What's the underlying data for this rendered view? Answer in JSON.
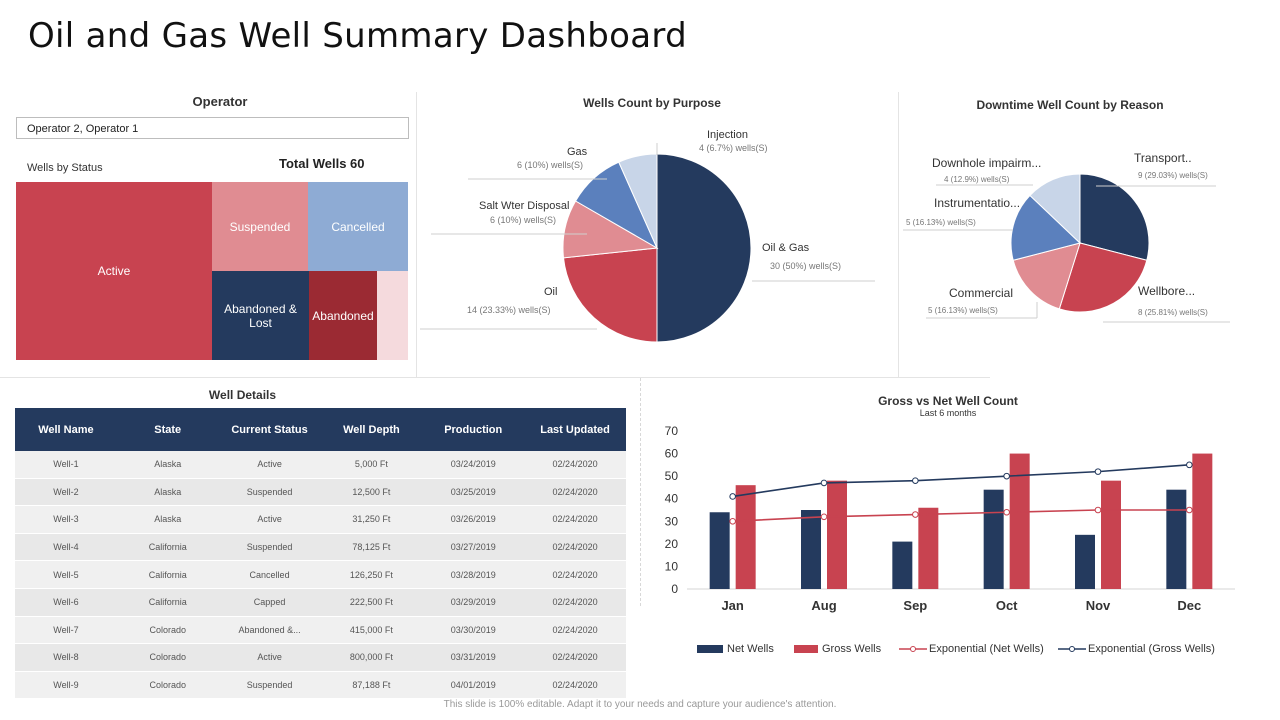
{
  "title": "Oil and Gas Well Summary Dashboard",
  "operator": {
    "title": "Operator",
    "filter_value": "Operator 2, Operator 1"
  },
  "status": {
    "label": "Wells by Status",
    "total": "Total Wells 60",
    "tiles": [
      "Active",
      "Suspended",
      "Cancelled",
      "Abandoned & Lost",
      "Abandoned"
    ]
  },
  "colors": {
    "navy": "#243a5e",
    "red": "#c84350",
    "pink": "#e08c92",
    "blue": "#5b80bd",
    "light_blue": "#c8d5e8",
    "sky": "#8eabd4",
    "dark_red": "#9b2a33",
    "pale_pink": "#f5dadd"
  },
  "chart_data": [
    {
      "type": "pie",
      "title": "Wells Count by Purpose",
      "slices": [
        {
          "label": "Oil & Gas",
          "detail": "30 (50%) wells(S)",
          "value": 30
        },
        {
          "label": "Oil",
          "detail": "14 (23.33%) wells(S)",
          "value": 14
        },
        {
          "label": "Salt Wter Disposal",
          "detail": "6 (10%) wells(S)",
          "value": 6
        },
        {
          "label": "Gas",
          "detail": "6 (10%) wells(S)",
          "value": 6
        },
        {
          "label": "Injection",
          "detail": "4 (6.7%) wells(S)",
          "value": 4
        }
      ]
    },
    {
      "type": "pie",
      "title": "Downtime Well Count by Reason",
      "slices": [
        {
          "label": "Transport..",
          "detail": "9 (29.03%) wells(S)",
          "value": 9
        },
        {
          "label": "Wellbore...",
          "detail": "8 (25.81%) wells(S)",
          "value": 8
        },
        {
          "label": "Commercial",
          "detail": "5 (16.13%) wells(S)",
          "value": 5
        },
        {
          "label": "Instrumentatio...",
          "detail": "5 (16.13%) wells(S)",
          "value": 5
        },
        {
          "label": "Downhole impairm...",
          "detail": "4 (12.9%) wells(S)",
          "value": 4
        }
      ]
    },
    {
      "type": "bar",
      "title": "Gross vs Net Well Count",
      "subtitle": "Last 6 months",
      "categories": [
        "Jan",
        "Aug",
        "Sep",
        "Oct",
        "Nov",
        "Dec"
      ],
      "ylim": [
        0,
        70
      ],
      "yticks": [
        "0",
        "10",
        "20",
        "30",
        "40",
        "50",
        "60",
        "70"
      ],
      "series": [
        {
          "name": "Net Wells",
          "kind": "bar",
          "values": [
            34,
            35,
            21,
            44,
            24,
            44
          ]
        },
        {
          "name": "Gross Wells",
          "kind": "bar",
          "values": [
            46,
            48,
            36,
            60,
            48,
            60
          ]
        },
        {
          "name": "Exponential (Net Wells)",
          "kind": "line",
          "values": [
            30,
            32,
            33,
            34,
            35,
            35
          ]
        },
        {
          "name": "Exponential (Gross Wells)",
          "kind": "line",
          "values": [
            41,
            47,
            48,
            50,
            52,
            55
          ]
        }
      ]
    }
  ],
  "well_details": {
    "title": "Well Details",
    "headers": [
      "Well Name",
      "State",
      "Current Status",
      "Well Depth",
      "Production",
      "Last Updated"
    ],
    "rows": [
      [
        "Well-1",
        "Alaska",
        "Active",
        "5,000 Ft",
        "03/24/2019",
        "02/24/2020"
      ],
      [
        "Well-2",
        "Alaska",
        "Suspended",
        "12,500 Ft",
        "03/25/2019",
        "02/24/2020"
      ],
      [
        "Well-3",
        "Alaska",
        "Active",
        "31,250 Ft",
        "03/26/2019",
        "02/24/2020"
      ],
      [
        "Well-4",
        "California",
        "Suspended",
        "78,125 Ft",
        "03/27/2019",
        "02/24/2020"
      ],
      [
        "Well-5",
        "California",
        "Cancelled",
        "126,250 Ft",
        "03/28/2019",
        "02/24/2020"
      ],
      [
        "Well-6",
        "California",
        "Capped",
        "222,500 Ft",
        "03/29/2019",
        "02/24/2020"
      ],
      [
        "Well-7",
        "Colorado",
        "Abandoned &...",
        "415,000 Ft",
        "03/30/2019",
        "02/24/2020"
      ],
      [
        "Well-8",
        "Colorado",
        "Active",
        "800,000 Ft",
        "03/31/2019",
        "02/24/2020"
      ],
      [
        "Well-9",
        "Colorado",
        "Suspended",
        "87,188 Ft",
        "04/01/2019",
        "02/24/2020"
      ]
    ]
  },
  "footer": "This slide is 100% editable. Adapt it to your needs and capture your audience's attention."
}
